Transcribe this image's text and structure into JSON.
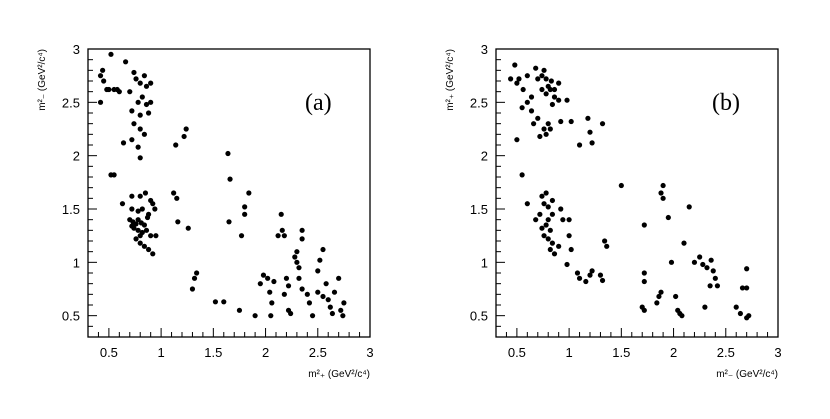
{
  "chart_data": [
    {
      "type": "scatter",
      "panel_label": "(a)",
      "xlabel": "m²₊ (GeV²/c⁴)",
      "ylabel": "m²₋ (GeV²/c⁴)",
      "xlim": [
        0.3,
        3.0
      ],
      "ylim": [
        0.3,
        3.0
      ],
      "xticks": [
        "0.5",
        "1",
        "1.5",
        "2",
        "2.5",
        "3"
      ],
      "yticks": [
        "0.5",
        "1",
        "1.5",
        "2",
        "2.5",
        "3"
      ],
      "grid": false,
      "points": [
        [
          0.42,
          2.75
        ],
        [
          0.44,
          2.8
        ],
        [
          0.45,
          2.7
        ],
        [
          0.5,
          2.62
        ],
        [
          0.55,
          2.62
        ],
        [
          0.58,
          2.62
        ],
        [
          0.52,
          2.95
        ],
        [
          0.66,
          2.88
        ],
        [
          0.7,
          2.6
        ],
        [
          0.74,
          2.78
        ],
        [
          0.76,
          2.72
        ],
        [
          0.8,
          2.68
        ],
        [
          0.84,
          2.75
        ],
        [
          0.86,
          2.65
        ],
        [
          0.9,
          2.68
        ],
        [
          0.78,
          2.5
        ],
        [
          0.82,
          2.55
        ],
        [
          0.86,
          2.48
        ],
        [
          0.9,
          2.5
        ],
        [
          0.72,
          2.42
        ],
        [
          0.8,
          2.38
        ],
        [
          0.88,
          2.4
        ],
        [
          0.74,
          2.3
        ],
        [
          0.8,
          2.25
        ],
        [
          0.84,
          2.2
        ],
        [
          0.64,
          2.12
        ],
        [
          0.72,
          2.15
        ],
        [
          0.78,
          2.08
        ],
        [
          0.8,
          1.98
        ],
        [
          0.42,
          2.5
        ],
        [
          0.6,
          2.6
        ],
        [
          0.48,
          2.62
        ],
        [
          0.52,
          1.82
        ],
        [
          0.55,
          1.82
        ],
        [
          0.63,
          1.55
        ],
        [
          0.72,
          1.62
        ],
        [
          0.8,
          1.62
        ],
        [
          0.85,
          1.65
        ],
        [
          0.9,
          1.58
        ],
        [
          0.92,
          1.55
        ],
        [
          0.72,
          1.5
        ],
        [
          0.78,
          1.48
        ],
        [
          0.82,
          1.5
        ],
        [
          0.88,
          1.45
        ],
        [
          0.94,
          1.5
        ],
        [
          0.7,
          1.4
        ],
        [
          0.73,
          1.38
        ],
        [
          0.76,
          1.36
        ],
        [
          0.78,
          1.4
        ],
        [
          0.81,
          1.37
        ],
        [
          0.84,
          1.35
        ],
        [
          0.87,
          1.42
        ],
        [
          0.74,
          1.32
        ],
        [
          0.78,
          1.3
        ],
        [
          0.82,
          1.28
        ],
        [
          0.86,
          1.3
        ],
        [
          0.9,
          1.25
        ],
        [
          0.95,
          1.25
        ],
        [
          0.76,
          1.22
        ],
        [
          0.8,
          1.18
        ],
        [
          0.84,
          1.15
        ],
        [
          0.88,
          1.12
        ],
        [
          0.92,
          1.08
        ],
        [
          0.8,
          1.25
        ],
        [
          0.72,
          1.34
        ],
        [
          1.12,
          1.65
        ],
        [
          1.15,
          1.6
        ],
        [
          1.14,
          2.1
        ],
        [
          1.22,
          2.18
        ],
        [
          1.24,
          2.25
        ],
        [
          1.16,
          1.38
        ],
        [
          1.26,
          1.32
        ],
        [
          1.34,
          0.9
        ],
        [
          1.32,
          0.85
        ],
        [
          1.3,
          0.75
        ],
        [
          1.52,
          0.63
        ],
        [
          1.6,
          0.63
        ],
        [
          1.64,
          2.02
        ],
        [
          1.66,
          1.78
        ],
        [
          1.65,
          1.38
        ],
        [
          1.77,
          1.25
        ],
        [
          1.8,
          1.52
        ],
        [
          1.84,
          1.65
        ],
        [
          1.8,
          1.45
        ],
        [
          1.75,
          0.55
        ],
        [
          1.9,
          0.5
        ],
        [
          1.95,
          0.8
        ],
        [
          1.98,
          0.88
        ],
        [
          2.02,
          0.85
        ],
        [
          2.04,
          0.72
        ],
        [
          2.06,
          0.62
        ],
        [
          2.05,
          0.5
        ],
        [
          2.08,
          0.82
        ],
        [
          2.12,
          1.25
        ],
        [
          2.15,
          1.45
        ],
        [
          2.16,
          1.3
        ],
        [
          2.18,
          1.25
        ],
        [
          2.2,
          0.85
        ],
        [
          2.18,
          0.7
        ],
        [
          2.22,
          0.55
        ],
        [
          2.24,
          0.52
        ],
        [
          2.22,
          0.78
        ],
        [
          2.28,
          1.05
        ],
        [
          2.3,
          1.1
        ],
        [
          2.3,
          1.0
        ],
        [
          2.32,
          0.95
        ],
        [
          2.35,
          1.3
        ],
        [
          2.35,
          1.22
        ],
        [
          2.32,
          0.85
        ],
        [
          2.35,
          0.75
        ],
        [
          2.4,
          0.7
        ],
        [
          2.42,
          0.62
        ],
        [
          2.45,
          0.5
        ],
        [
          2.5,
          0.92
        ],
        [
          2.52,
          1.02
        ],
        [
          2.55,
          1.12
        ],
        [
          2.5,
          0.72
        ],
        [
          2.55,
          0.68
        ],
        [
          2.58,
          0.8
        ],
        [
          2.6,
          0.65
        ],
        [
          2.62,
          0.58
        ],
        [
          2.64,
          0.52
        ],
        [
          2.66,
          0.72
        ],
        [
          2.7,
          0.85
        ],
        [
          2.72,
          0.55
        ],
        [
          2.75,
          0.62
        ],
        [
          2.74,
          0.5
        ]
      ]
    },
    {
      "type": "scatter",
      "panel_label": "(b)",
      "xlabel": "m²₋ (GeV²/c⁴)",
      "ylabel": "m²₊ (GeV²/c⁴)",
      "xlim": [
        0.3,
        3.0
      ],
      "ylim": [
        0.3,
        3.0
      ],
      "xticks": [
        "0.5",
        "1",
        "1.5",
        "2",
        "2.5",
        "3"
      ],
      "yticks": [
        "0.5",
        "1",
        "1.5",
        "2",
        "2.5",
        "3"
      ],
      "grid": false,
      "points": [
        [
          0.44,
          2.72
        ],
        [
          0.48,
          2.85
        ],
        [
          0.5,
          2.68
        ],
        [
          0.52,
          2.72
        ],
        [
          0.56,
          2.62
        ],
        [
          0.6,
          2.75
        ],
        [
          0.68,
          2.82
        ],
        [
          0.7,
          2.72
        ],
        [
          0.74,
          2.75
        ],
        [
          0.76,
          2.8
        ],
        [
          0.78,
          2.72
        ],
        [
          0.8,
          2.65
        ],
        [
          0.83,
          2.7
        ],
        [
          0.86,
          2.62
        ],
        [
          0.9,
          2.68
        ],
        [
          0.74,
          2.62
        ],
        [
          0.78,
          2.58
        ],
        [
          0.82,
          2.62
        ],
        [
          0.86,
          2.55
        ],
        [
          0.9,
          2.52
        ],
        [
          0.6,
          2.5
        ],
        [
          0.64,
          2.42
        ],
        [
          0.7,
          2.35
        ],
        [
          0.66,
          2.3
        ],
        [
          0.76,
          2.25
        ],
        [
          0.72,
          2.18
        ],
        [
          0.78,
          2.2
        ],
        [
          0.82,
          2.25
        ],
        [
          0.8,
          2.3
        ],
        [
          0.84,
          2.48
        ],
        [
          0.5,
          2.15
        ],
        [
          0.64,
          2.55
        ],
        [
          0.55,
          2.45
        ],
        [
          0.55,
          1.82
        ],
        [
          0.6,
          1.55
        ],
        [
          0.68,
          1.4
        ],
        [
          0.72,
          1.45
        ],
        [
          0.74,
          1.62
        ],
        [
          0.78,
          1.65
        ],
        [
          0.76,
          1.55
        ],
        [
          0.8,
          1.52
        ],
        [
          0.84,
          1.58
        ],
        [
          0.92,
          1.5
        ],
        [
          0.74,
          1.32
        ],
        [
          0.78,
          1.35
        ],
        [
          0.8,
          1.4
        ],
        [
          0.82,
          1.3
        ],
        [
          0.76,
          1.25
        ],
        [
          0.8,
          1.22
        ],
        [
          0.84,
          1.18
        ],
        [
          0.82,
          1.12
        ],
        [
          0.86,
          1.08
        ],
        [
          0.9,
          1.15
        ],
        [
          0.94,
          1.4
        ],
        [
          0.84,
          1.45
        ],
        [
          0.92,
          2.32
        ],
        [
          0.98,
          2.52
        ],
        [
          1.02,
          2.32
        ],
        [
          1.1,
          2.1
        ],
        [
          1.18,
          2.35
        ],
        [
          1.2,
          2.22
        ],
        [
          1.22,
          2.12
        ],
        [
          1.32,
          2.3
        ],
        [
          1.5,
          1.72
        ],
        [
          1.0,
          1.25
        ],
        [
          1.02,
          1.12
        ],
        [
          1.0,
          1.4
        ],
        [
          0.98,
          0.98
        ],
        [
          1.08,
          0.9
        ],
        [
          1.1,
          0.85
        ],
        [
          1.16,
          0.82
        ],
        [
          1.2,
          0.88
        ],
        [
          1.22,
          0.92
        ],
        [
          1.3,
          0.88
        ],
        [
          1.34,
          1.2
        ],
        [
          1.36,
          1.15
        ],
        [
          1.32,
          0.83
        ],
        [
          1.72,
          0.9
        ],
        [
          1.72,
          0.82
        ],
        [
          1.72,
          1.35
        ],
        [
          1.7,
          0.58
        ],
        [
          1.72,
          0.55
        ],
        [
          1.84,
          0.62
        ],
        [
          1.86,
          0.68
        ],
        [
          1.88,
          0.72
        ],
        [
          1.88,
          1.65
        ],
        [
          1.9,
          1.72
        ],
        [
          1.9,
          1.6
        ],
        [
          1.95,
          1.42
        ],
        [
          1.98,
          1.0
        ],
        [
          2.02,
          0.68
        ],
        [
          2.04,
          0.55
        ],
        [
          2.06,
          0.52
        ],
        [
          2.08,
          0.5
        ],
        [
          2.1,
          1.18
        ],
        [
          2.15,
          1.52
        ],
        [
          2.2,
          1.0
        ],
        [
          2.25,
          1.05
        ],
        [
          2.28,
          0.98
        ],
        [
          2.3,
          0.58
        ],
        [
          2.32,
          0.95
        ],
        [
          2.35,
          0.78
        ],
        [
          2.36,
          1.02
        ],
        [
          2.38,
          0.92
        ],
        [
          2.4,
          0.85
        ],
        [
          2.42,
          0.78
        ],
        [
          2.6,
          0.58
        ],
        [
          2.64,
          0.52
        ],
        [
          2.66,
          0.76
        ],
        [
          2.7,
          0.94
        ],
        [
          2.7,
          0.76
        ],
        [
          2.72,
          0.5
        ],
        [
          2.7,
          0.48
        ]
      ]
    }
  ]
}
